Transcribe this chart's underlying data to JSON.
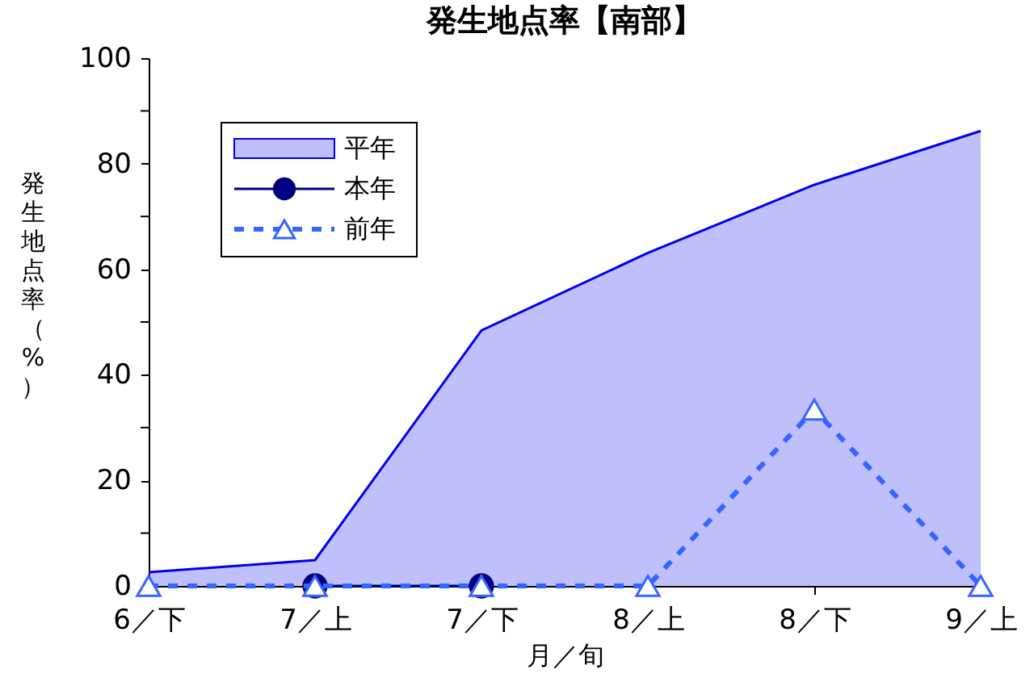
{
  "chart_data": {
    "type": "line",
    "title": "発生地点率【南部】",
    "xlabel": "月／旬",
    "ylabel": "発生地点率（%）",
    "categories": [
      "6／下",
      "7／上",
      "7／下",
      "8／上",
      "8／下",
      "9／上"
    ],
    "series": [
      {
        "name": "平年",
        "type": "area",
        "color": "#0000ee",
        "values": [
          2.6,
          4.9,
          48.4,
          63.1,
          76,
          86.2
        ]
      },
      {
        "name": "本年",
        "color": "#000080",
        "marker": "circle",
        "line_style": "solid",
        "values": [
          null,
          0,
          0,
          null,
          null,
          null
        ]
      },
      {
        "name": "前年",
        "color": "#3366ff",
        "marker": "triangle",
        "line_style": "dashed",
        "values": [
          0,
          0,
          0,
          0,
          33.4,
          0
        ]
      }
    ],
    "ylim": [
      0,
      100
    ],
    "yticks": [
      0,
      {
        "value": 10,
        "label": null
      },
      20,
      {
        "value": 30,
        "label": null
      },
      40,
      {
        "value": 50,
        "label": null
      },
      60,
      {
        "value": 70,
        "label": null
      },
      80,
      {
        "value": 90,
        "label": null
      },
      100
    ],
    "grid": false,
    "legend": "top left"
  }
}
